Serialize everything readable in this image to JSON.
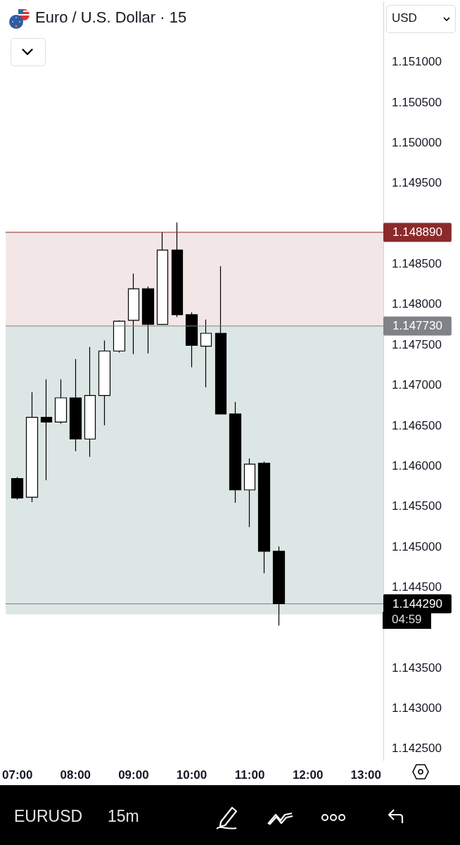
{
  "chart_data": {
    "type": "candlestick",
    "title": "Euro / U.S. Dollar · 15",
    "x": [
      7,
      7.25,
      7.5,
      7.75,
      8,
      8.25,
      8.5,
      8.75,
      9,
      9.25,
      9.5,
      9.75,
      10,
      10.25,
      10.5,
      10.75,
      11,
      11.25,
      11.5
    ],
    "ohlc": [
      [
        1.14584,
        1.14586,
        1.14558,
        1.1456
      ],
      [
        1.14561,
        1.14691,
        1.14555,
        1.1466
      ],
      [
        1.1466,
        1.14707,
        1.14582,
        1.14654
      ],
      [
        1.14654,
        1.14707,
        1.14652,
        1.14684
      ],
      [
        1.14684,
        1.14732,
        1.14618,
        1.14633
      ],
      [
        1.14633,
        1.14747,
        1.14611,
        1.14687
      ],
      [
        1.14687,
        1.14755,
        1.1465,
        1.14742
      ],
      [
        1.14742,
        1.1478,
        1.1474,
        1.14779
      ],
      [
        1.1478,
        1.14838,
        1.14738,
        1.14819
      ],
      [
        1.14819,
        1.14822,
        1.14739,
        1.14775
      ],
      [
        1.14775,
        1.14889,
        1.14775,
        1.14867
      ],
      [
        1.14867,
        1.14901,
        1.14784,
        1.14787
      ],
      [
        1.14787,
        1.1479,
        1.14722,
        1.14749
      ],
      [
        1.14748,
        1.14781,
        1.14697,
        1.14764
      ],
      [
        1.14764,
        1.14847,
        1.14664,
        1.14664
      ],
      [
        1.14664,
        1.14679,
        1.14554,
        1.1457
      ],
      [
        1.1457,
        1.14609,
        1.14524,
        1.14602
      ],
      [
        1.14603,
        1.14605,
        1.14467,
        1.14494
      ],
      [
        1.14494,
        1.145,
        1.14402,
        1.14429
      ]
    ],
    "color": "#000000",
    "colors": [
      "#000000",
      "#ffffff",
      "#000000",
      "#ffffff",
      "#000000",
      "#ffffff",
      "#ffffff",
      "#ffffff",
      "#ffffff",
      "#000000",
      "#ffffff",
      "#000000",
      "#000000",
      "#ffffff",
      "#000000",
      "#000000",
      "#ffffff",
      "#000000",
      "#000000"
    ],
    "xlim": [
      6.8,
      13.3
    ],
    "xticks": [
      {
        "value": 7,
        "label": "07:00"
      },
      {
        "value": 8,
        "label": "08:00"
      },
      {
        "value": 9,
        "label": "09:00"
      },
      {
        "value": 10,
        "label": "10:00"
      },
      {
        "value": 11,
        "label": "11:00"
      },
      {
        "value": 12,
        "label": "12:00"
      },
      {
        "value": 13,
        "label": "13:00"
      }
    ],
    "ylim": [
      1.14235,
      1.15174
    ],
    "yticks": [
      {
        "value": 1.1425,
        "label": "1.142500"
      },
      {
        "value": 1.143,
        "label": "1.143000"
      },
      {
        "value": 1.1435,
        "label": "1.143500"
      },
      {
        "value": 1.1445,
        "label": "1.144500"
      },
      {
        "value": 1.145,
        "label": "1.145000"
      },
      {
        "value": 1.1455,
        "label": "1.145500"
      },
      {
        "value": 1.146,
        "label": "1.146000"
      },
      {
        "value": 1.1465,
        "label": "1.146500"
      },
      {
        "value": 1.147,
        "label": "1.147000"
      },
      {
        "value": 1.1475,
        "label": "1.147500"
      },
      {
        "value": 1.148,
        "label": "1.148000"
      },
      {
        "value": 1.1485,
        "label": "1.148500"
      },
      {
        "value": 1.1495,
        "label": "1.149500"
      },
      {
        "value": 1.15,
        "label": "1.150000"
      },
      {
        "value": 1.1505,
        "label": "1.150500"
      },
      {
        "value": 1.151,
        "label": "1.151000"
      }
    ],
    "ref_lines": [
      {
        "axis": "y",
        "value": 1.14889,
        "label": "1.148890",
        "color": "#8b2a2a"
      },
      {
        "axis": "y",
        "value": 1.14773,
        "label": "1.147730",
        "color": "#7f8388"
      },
      {
        "axis": "y",
        "value": 1.14429,
        "label": "1.144290",
        "color": "#000000",
        "line_style": "dotted"
      }
    ],
    "bands": [
      {
        "axis": "y",
        "from": 1.14773,
        "to": 1.14889,
        "color": "#f3e6e6"
      },
      {
        "axis": "y",
        "from": 1.14416,
        "to": 1.14773,
        "color": "#dce6e4"
      }
    ],
    "annotations": [
      "USD",
      "04:59",
      "EURUSD",
      "15m"
    ],
    "grid": false
  }
}
